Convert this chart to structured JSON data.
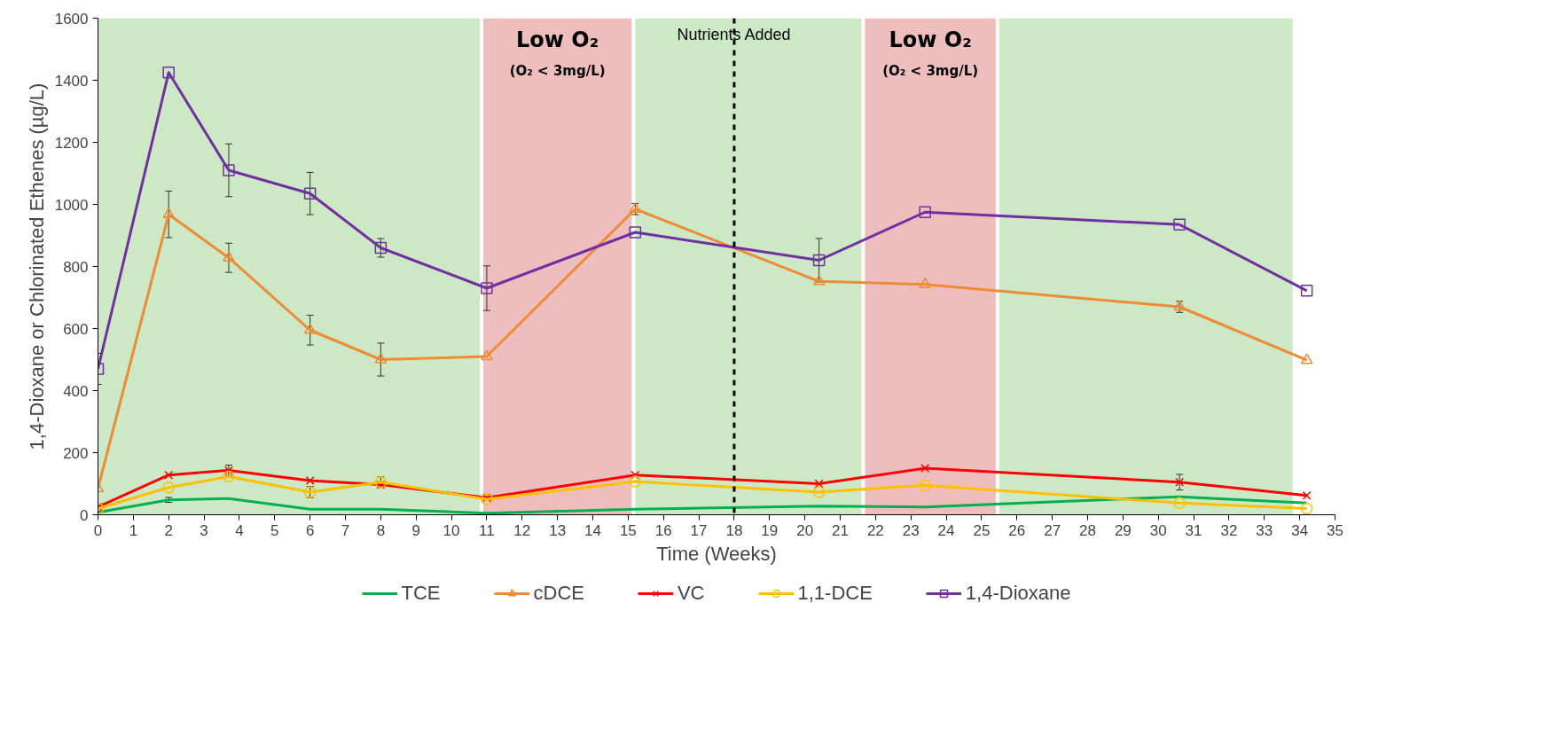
{
  "chart_data": {
    "type": "line",
    "xlabel": "Time (Weeks)",
    "ylabel": "1,4-Dioxane or Chlorinated Ethenes (µg/L)",
    "x": [
      0,
      2,
      3.7,
      6,
      8,
      11,
      15.2,
      20.4,
      23.4,
      30.6,
      34.2
    ],
    "xlim": [
      0,
      35
    ],
    "xticks": [
      0,
      1,
      2,
      3,
      4,
      5,
      6,
      7,
      8,
      9,
      10,
      11,
      12,
      13,
      14,
      15,
      16,
      17,
      18,
      19,
      20,
      21,
      22,
      23,
      24,
      25,
      26,
      27,
      28,
      29,
      30,
      31,
      32,
      33,
      34,
      35
    ],
    "ylim": [
      0,
      1600
    ],
    "yticks": [
      0,
      200,
      400,
      600,
      800,
      1000,
      1200,
      1400,
      1600
    ],
    "grid": false,
    "legend": "bottom",
    "series": [
      {
        "name": "TCE",
        "color": "#00b050",
        "marker": "none",
        "values": [
          8,
          48,
          52,
          18,
          18,
          5,
          18,
          28,
          25,
          58,
          38
        ],
        "errors": [
          null,
          8,
          null,
          null,
          null,
          null,
          null,
          null,
          null,
          null,
          null
        ]
      },
      {
        "name": "cDCE",
        "color": "#ed8b36",
        "marker": "triangle",
        "values": [
          85,
          968,
          828,
          595,
          500,
          510,
          985,
          752,
          742,
          670,
          498
        ],
        "errors": [
          null,
          75,
          47,
          48,
          53,
          null,
          18,
          null,
          null,
          18,
          null
        ]
      },
      {
        "name": "VC",
        "color": "#ff0000",
        "marker": "cross",
        "values": [
          25,
          128,
          143,
          110,
          97,
          55,
          128,
          100,
          150,
          105,
          62
        ],
        "errors": [
          null,
          null,
          17,
          null,
          null,
          null,
          null,
          null,
          null,
          25,
          null
        ]
      },
      {
        "name": "1,1-DCE",
        "color": "#ffc000",
        "marker": "circle",
        "values": [
          20,
          88,
          123,
          73,
          105,
          50,
          107,
          73,
          95,
          38,
          20
        ],
        "errors": [
          null,
          null,
          null,
          18,
          17,
          null,
          null,
          null,
          null,
          null,
          null
        ]
      },
      {
        "name": "1,4-Dioxane",
        "color": "#7030a0",
        "marker": "square",
        "values": [
          470,
          1425,
          1110,
          1035,
          860,
          730,
          910,
          820,
          975,
          935,
          722
        ],
        "errors": [
          50,
          null,
          85,
          68,
          30,
          72,
          null,
          70,
          null,
          null,
          null
        ]
      }
    ],
    "bands": [
      {
        "axis": "x",
        "from": 0,
        "to": 10.8,
        "color": "#cce8c5"
      },
      {
        "axis": "x",
        "from": 10.9,
        "to": 15.1,
        "color": "#eebebe",
        "label": "Low O₂\n(O₂ < 3mg/L)"
      },
      {
        "axis": "x",
        "from": 15.2,
        "to": 21.6,
        "color": "#cce8c5"
      },
      {
        "axis": "x",
        "from": 21.7,
        "to": 25.4,
        "color": "#eebebe",
        "label": "Low O₂\n(O₂ < 3mg/L)"
      },
      {
        "axis": "x",
        "from": 25.5,
        "to": 33.8,
        "color": "#cce8c5"
      }
    ],
    "ref_lines": [
      {
        "axis": "x",
        "value": 18,
        "label": "Nutrients Added",
        "color": "#000000",
        "line_style": "dashed"
      }
    ]
  }
}
